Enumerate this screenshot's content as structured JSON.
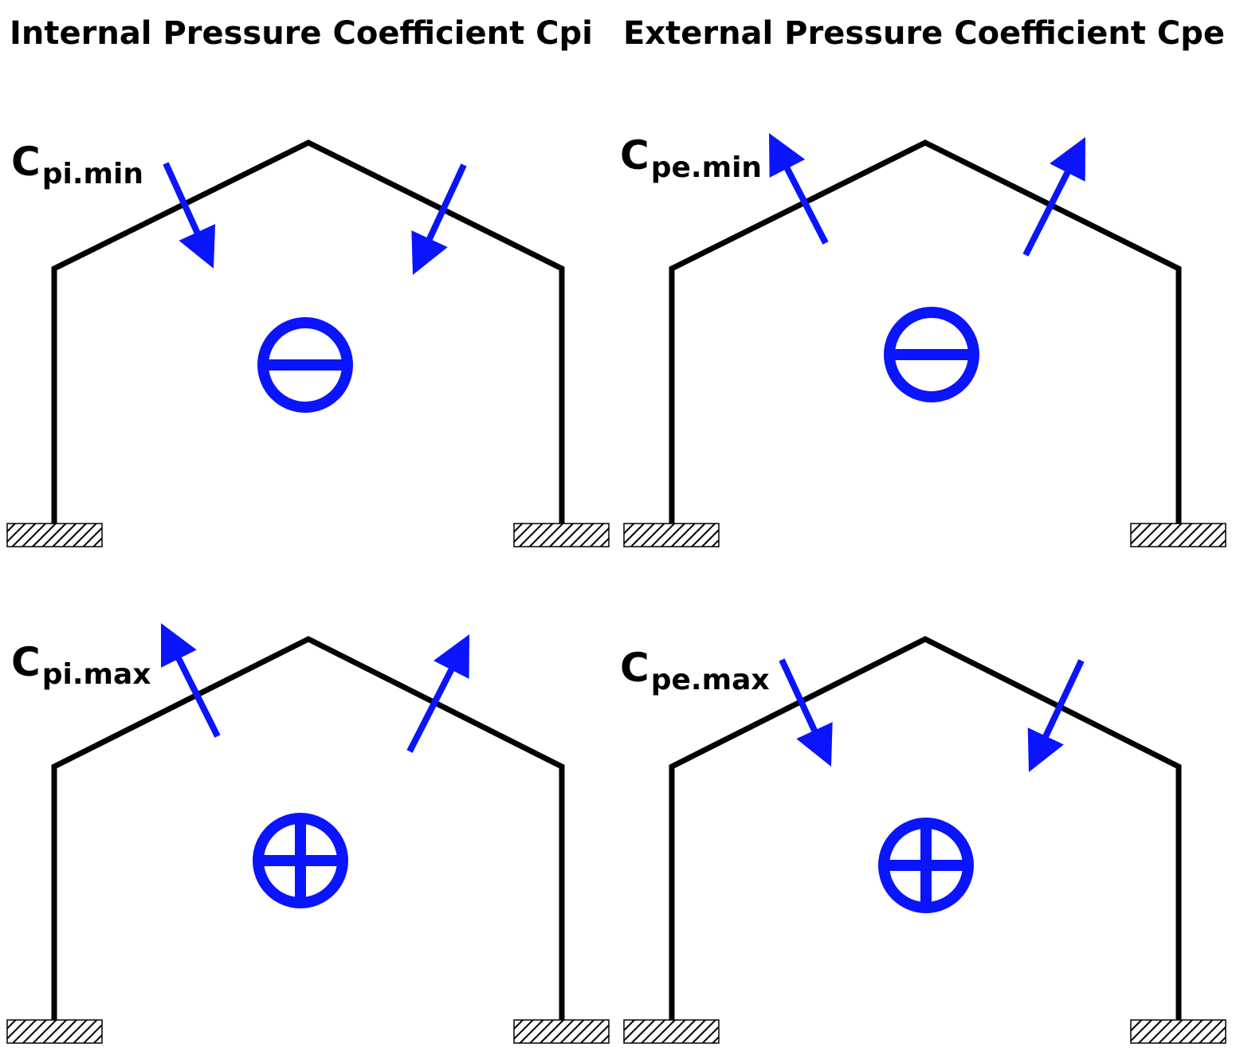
{
  "headings": {
    "internal": "Internal Pressure Coefficient Cpi",
    "external": "External Pressure Coefficient Cpe"
  },
  "colors": {
    "frame": "#000000",
    "arrow": "#0a14ff",
    "sign": "#0a14ff"
  },
  "panels": {
    "internal_min": {
      "label_main": "C",
      "label_sub": "pi.min",
      "arrow_direction": "inward",
      "sign": "minus",
      "sign_icon": "minus-circle-icon"
    },
    "external_min": {
      "label_main": "C",
      "label_sub": "pe.min",
      "arrow_direction": "outward",
      "sign": "minus",
      "sign_icon": "minus-circle-icon"
    },
    "internal_max": {
      "label_main": "C",
      "label_sub": "pi.max",
      "arrow_direction": "outward",
      "sign": "plus",
      "sign_icon": "plus-circle-icon"
    },
    "external_max": {
      "label_main": "C",
      "label_sub": "pe.max",
      "arrow_direction": "inward",
      "sign": "plus",
      "sign_icon": "plus-circle-icon"
    }
  }
}
